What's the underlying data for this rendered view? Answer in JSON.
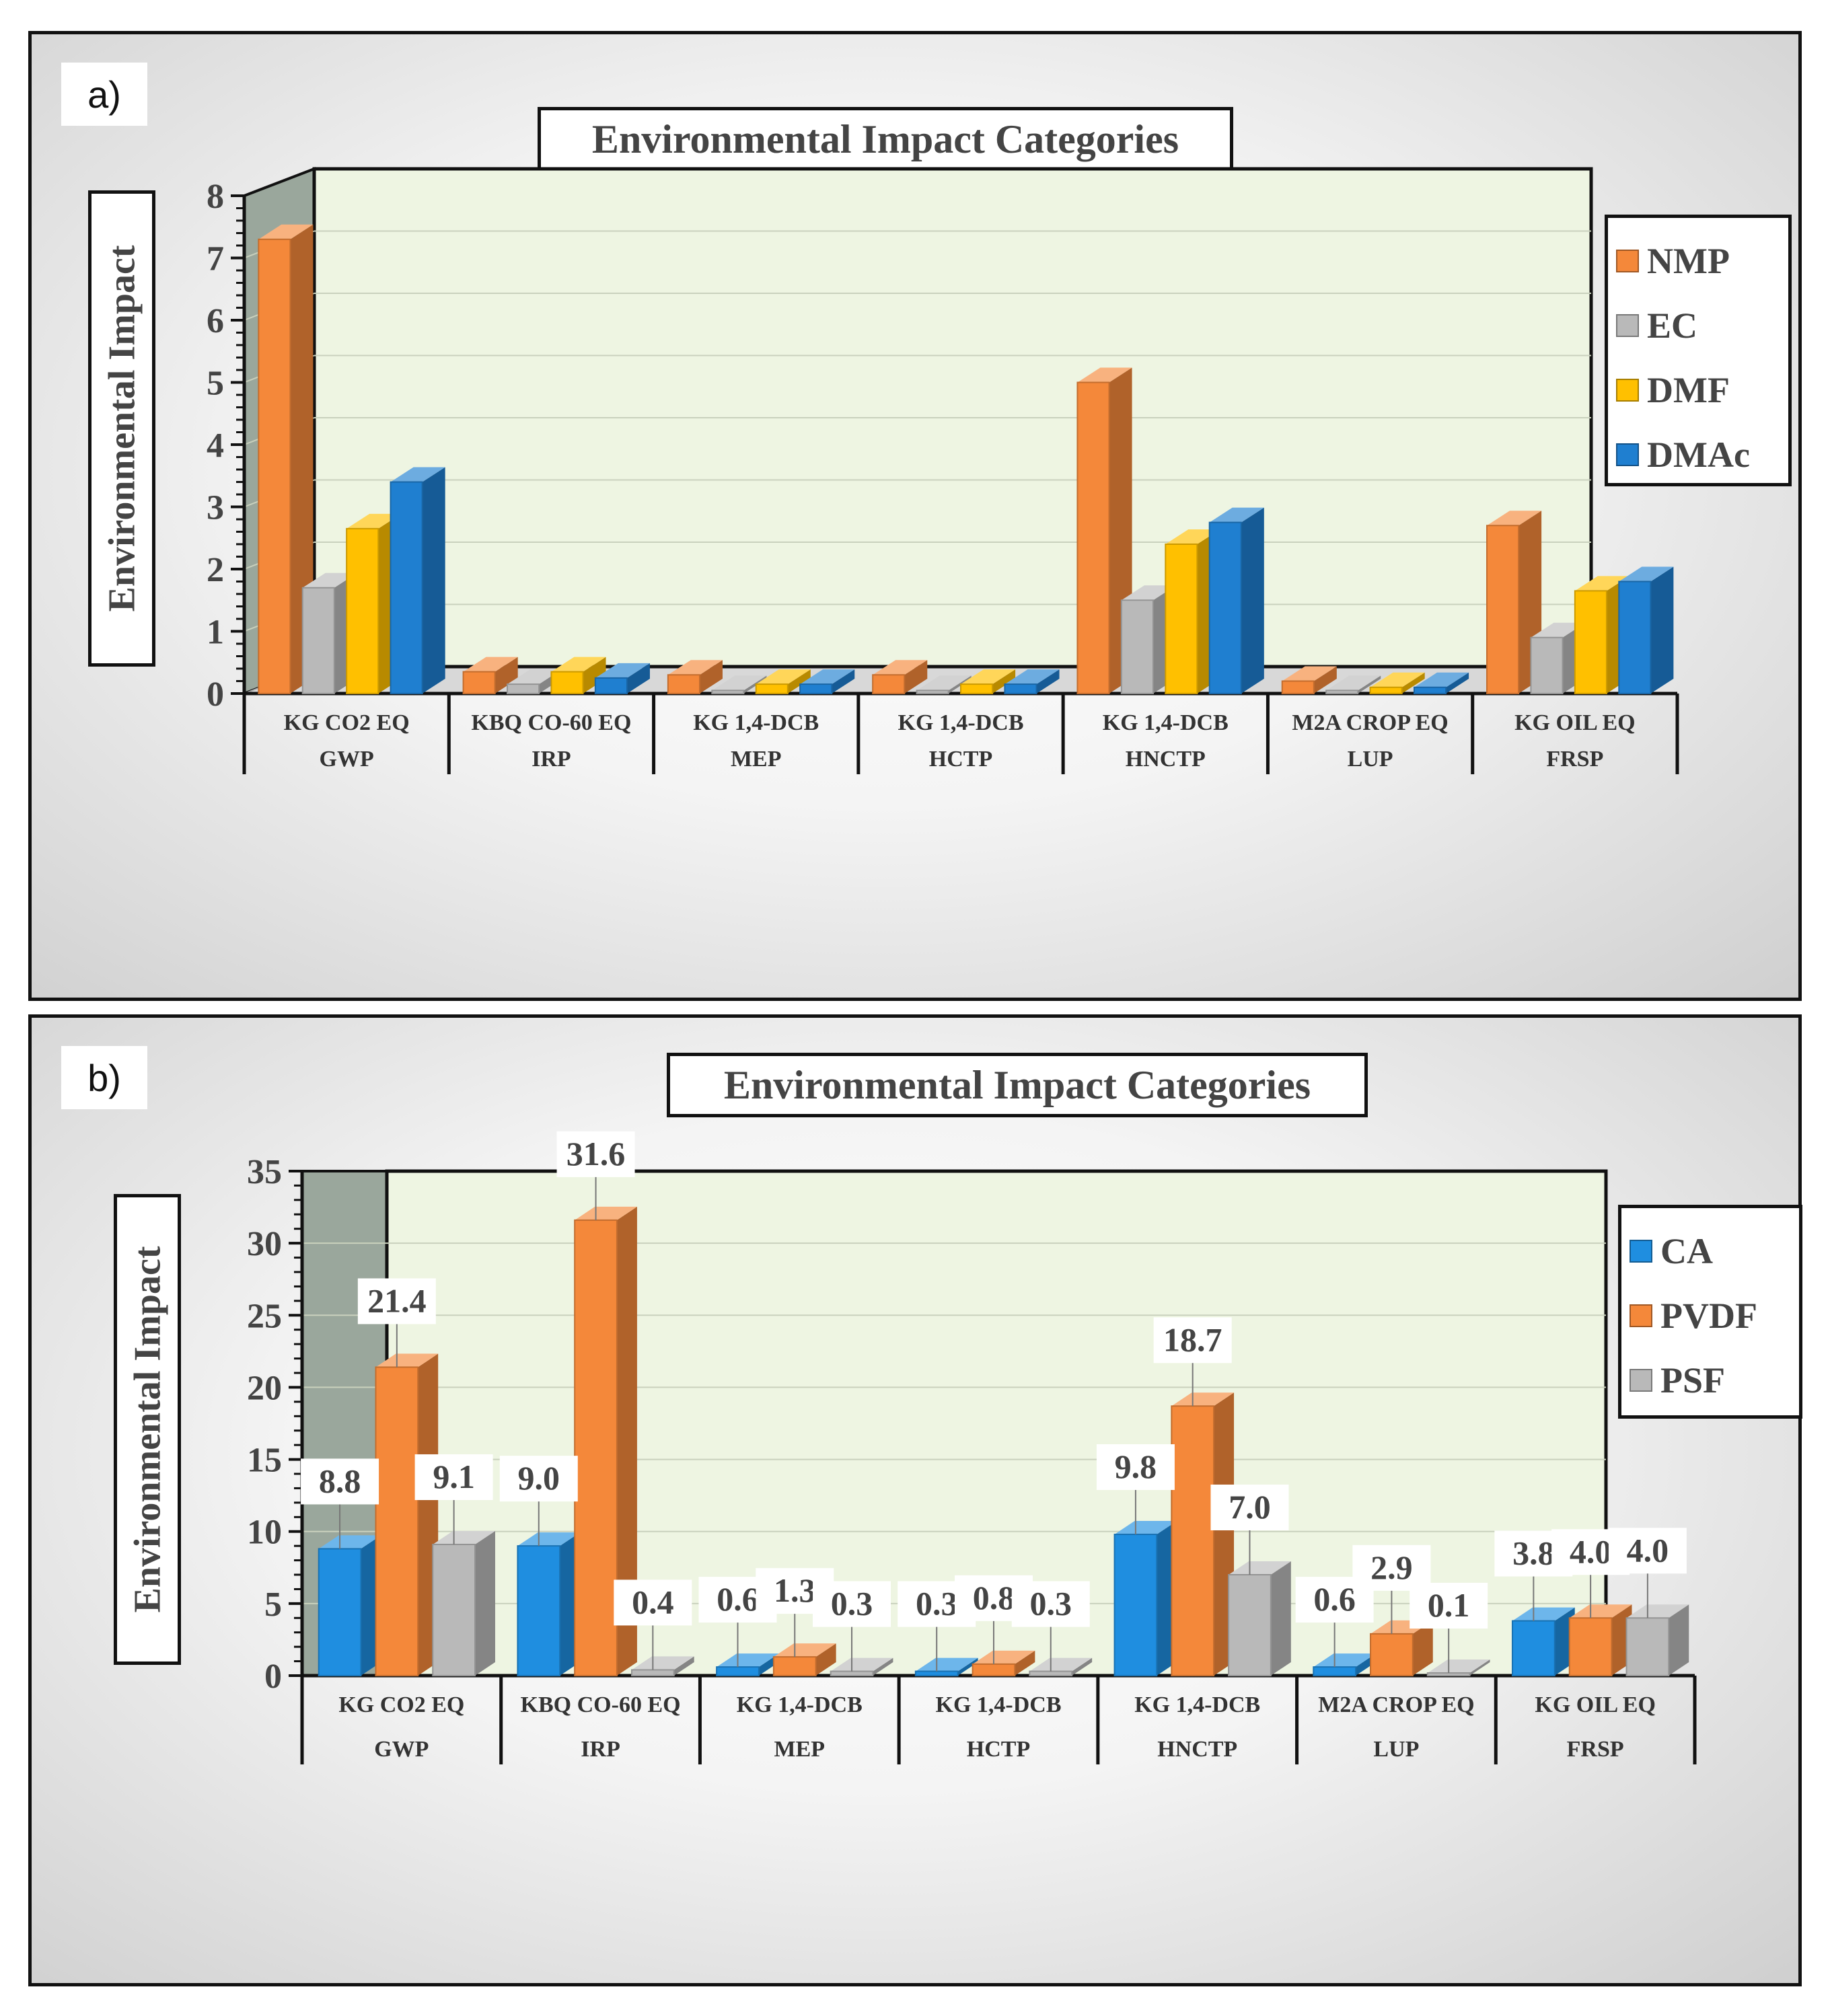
{
  "chart_data": [
    {
      "panel_label": "a)",
      "type": "bar",
      "style": "3d-clustered",
      "title": "Environmental Impact Categories",
      "ylabel": "Environmental Impact",
      "xlabel": "",
      "ylim": [
        0,
        8
      ],
      "yticks": [
        0,
        1,
        2,
        3,
        4,
        5,
        6,
        7,
        8
      ],
      "categories": [
        {
          "unit": "KG CO2 EQ",
          "name": "GWP"
        },
        {
          "unit": "KBQ CO-60 EQ",
          "name": "IRP"
        },
        {
          "unit": "KG 1,4-DCB",
          "name": "MEP"
        },
        {
          "unit": "KG 1,4-DCB",
          "name": "HCTP"
        },
        {
          "unit": "KG 1,4-DCB",
          "name": "HNCTP"
        },
        {
          "unit": "M2A CROP EQ",
          "name": "LUP"
        },
        {
          "unit": "KG OIL EQ",
          "name": "FRSP"
        }
      ],
      "series": [
        {
          "name": "NMP",
          "color": "#f4883a",
          "values": [
            7.3,
            0.35,
            0.3,
            0.3,
            5.0,
            0.2,
            2.7
          ]
        },
        {
          "name": "EC",
          "color": "#b9b9b9",
          "values": [
            1.7,
            0.15,
            0.05,
            0.05,
            1.5,
            0.05,
            0.9
          ]
        },
        {
          "name": "DMF",
          "color": "#ffc000",
          "values": [
            2.65,
            0.35,
            0.15,
            0.15,
            2.4,
            0.1,
            1.65
          ]
        },
        {
          "name": "DMAc",
          "color": "#1f7fd0",
          "values": [
            3.4,
            0.25,
            0.15,
            0.15,
            2.75,
            0.1,
            1.8
          ]
        }
      ],
      "grid": true,
      "legend": "right"
    },
    {
      "panel_label": "b)",
      "type": "bar",
      "style": "3d-clustered",
      "title": "Environmental Impact Categories",
      "ylabel": "Environmental Impact",
      "xlabel": "",
      "ylim": [
        0,
        35
      ],
      "yticks": [
        0,
        5,
        10,
        15,
        20,
        25,
        30,
        35
      ],
      "categories": [
        {
          "unit": "KG CO2 EQ",
          "name": "GWP"
        },
        {
          "unit": "KBQ CO-60 EQ",
          "name": "IRP"
        },
        {
          "unit": "KG 1,4-DCB",
          "name": "MEP"
        },
        {
          "unit": "KG 1,4-DCB",
          "name": "HCTP"
        },
        {
          "unit": "KG 1,4-DCB",
          "name": "HNCTP"
        },
        {
          "unit": "M2A CROP EQ",
          "name": "LUP"
        },
        {
          "unit": "KG OIL EQ",
          "name": "FRSP"
        }
      ],
      "series": [
        {
          "name": "CA",
          "color": "#1f8ee0",
          "values": [
            8.8,
            9.0,
            0.6,
            0.3,
            9.8,
            0.6,
            3.8
          ],
          "labels": [
            "8.8",
            "9.0",
            "0.6",
            "0.3",
            "9.8",
            "0.6",
            "3.8"
          ]
        },
        {
          "name": "PVDF",
          "color": "#f4883a",
          "values": [
            21.4,
            31.6,
            1.3,
            0.8,
            18.7,
            2.9,
            4.0
          ],
          "labels": [
            "21.4",
            "31.6",
            "1.3",
            "0.8",
            "18.7",
            "2.9",
            "4.0"
          ]
        },
        {
          "name": "PSF",
          "color": "#b9b9b9",
          "values": [
            9.1,
            0.4,
            0.3,
            0.3,
            7.0,
            0.1,
            4.0
          ],
          "labels": [
            "9.1",
            "0.4",
            "0.3",
            "0.3",
            "7.0",
            "0.1",
            "4.0"
          ]
        }
      ],
      "grid": true,
      "legend": "right",
      "data_labels": true
    }
  ]
}
